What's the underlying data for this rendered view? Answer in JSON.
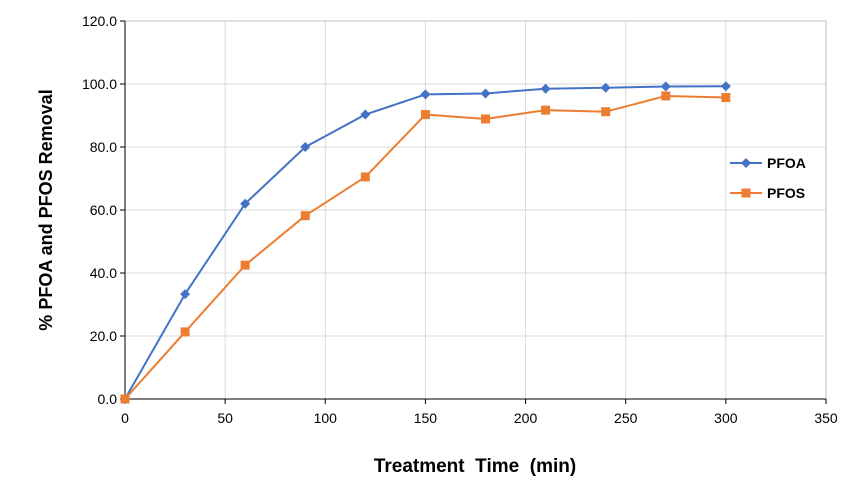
{
  "chart_data": {
    "type": "line",
    "title": "",
    "xlabel": "Treatment  Time  (min)",
    "ylabel": "% PFOA and PFOS Removal",
    "xlim": [
      0,
      350
    ],
    "ylim": [
      0,
      120
    ],
    "xticks": [
      0,
      50,
      100,
      150,
      200,
      250,
      300,
      350
    ],
    "yticks": [
      0,
      20,
      40,
      60,
      80,
      100,
      120
    ],
    "x_tick_labels": [
      "0",
      "50",
      "100",
      "150",
      "200",
      "250",
      "300",
      "350"
    ],
    "y_tick_labels": [
      "0.0",
      "20.0",
      "40.0",
      "60.0",
      "80.0",
      "100.0",
      "120.0"
    ],
    "grid": true,
    "legend_position": "right",
    "series": [
      {
        "name": "PFOA",
        "marker": "diamond",
        "color": "#4472C4",
        "x": [
          0,
          30,
          60,
          90,
          120,
          150,
          180,
          210,
          240,
          270,
          300
        ],
        "y": [
          0,
          33.3,
          62.0,
          80.0,
          90.3,
          96.7,
          97.0,
          98.5,
          98.8,
          99.2,
          99.3
        ]
      },
      {
        "name": "PFOS",
        "marker": "square",
        "color": "#ED7D31",
        "x": [
          0,
          30,
          60,
          90,
          120,
          150,
          180,
          210,
          240,
          270,
          300
        ],
        "y": [
          0,
          21.3,
          42.5,
          58.2,
          70.5,
          90.3,
          88.9,
          91.7,
          91.2,
          96.2,
          95.7
        ]
      }
    ]
  }
}
